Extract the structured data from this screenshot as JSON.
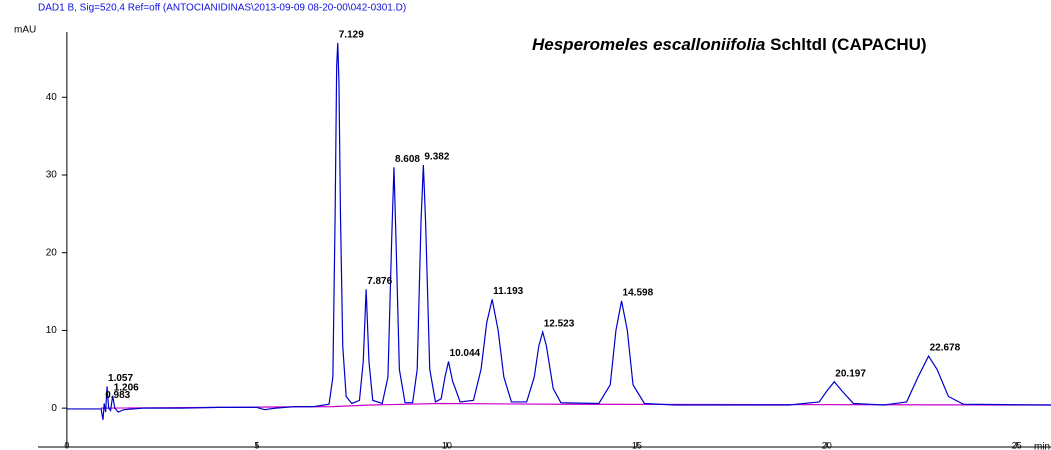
{
  "chart_data": {
    "type": "line",
    "header": "DAD1 B, Sig=520,4 Ref=off (ANTOCIANIDINAS\\2013-09-09 08-20-00\\042-0301.D)",
    "title": {
      "species": "Hesperomeles escalloniifolia",
      "rest": "Schltdl (CAPACHU)"
    },
    "y_label": "mAU",
    "x_label": "min",
    "xlim": [
      -0.76,
      25.9
    ],
    "ylim": [
      -5,
      48.4
    ],
    "xticks": [
      0,
      5,
      10,
      15,
      20,
      25
    ],
    "yticks": [
      0,
      10,
      20,
      30,
      40
    ],
    "series": [
      {
        "color": "#0000cc",
        "x": [
          0,
          0.9,
          0.95,
          0.983,
          1.02,
          1.057,
          1.1,
          1.15,
          1.206,
          1.26,
          1.35,
          1.5,
          2,
          3,
          4,
          5,
          5.2,
          5.5,
          6,
          6.5,
          6.9,
          7.0,
          7.06,
          7.1,
          7.129,
          7.16,
          7.2,
          7.26,
          7.35,
          7.5,
          7.7,
          7.8,
          7.876,
          7.95,
          8.05,
          8.3,
          8.45,
          8.55,
          8.608,
          8.66,
          8.75,
          8.9,
          9.1,
          9.22,
          9.32,
          9.382,
          9.44,
          9.55,
          9.7,
          9.85,
          9.95,
          10.044,
          10.15,
          10.35,
          10.7,
          10.9,
          11.05,
          11.193,
          11.35,
          11.5,
          11.7,
          12.1,
          12.3,
          12.42,
          12.523,
          12.62,
          12.8,
          13.0,
          14.0,
          14.3,
          14.45,
          14.598,
          14.75,
          14.9,
          15.2,
          16,
          19,
          19.8,
          20.0,
          20.197,
          20.4,
          20.7,
          21.5,
          22.1,
          22.4,
          22.678,
          22.9,
          23.2,
          23.6,
          25.9
        ],
        "values": [
          -0.1,
          -0.1,
          -1.5,
          0.6,
          -0.5,
          2.8,
          0,
          -0.3,
          1.6,
          0,
          -0.5,
          -0.2,
          0,
          0,
          0.1,
          0.1,
          -0.2,
          0,
          0.2,
          0.2,
          0.5,
          4,
          25,
          44,
          47,
          42,
          25,
          8,
          1.5,
          0.6,
          1,
          6,
          15.3,
          6,
          1,
          0.6,
          4,
          22,
          31,
          22,
          5,
          0.7,
          0.7,
          5,
          24,
          31.3,
          24,
          5,
          0.8,
          1.2,
          4,
          6,
          3.5,
          0.8,
          1,
          5,
          11,
          14,
          10,
          4,
          0.8,
          0.8,
          4,
          8,
          9.8,
          8,
          2.5,
          0.7,
          0.6,
          3,
          10,
          13.8,
          10,
          3,
          0.6,
          0.4,
          0.4,
          0.8,
          2.2,
          3.4,
          2.2,
          0.6,
          0.4,
          0.8,
          4,
          6.7,
          5,
          1.5,
          0.5,
          0.4
        ]
      },
      {
        "color": "#cc00cc",
        "x": [
          0.9,
          7,
          8,
          9.8,
          13,
          25.9
        ],
        "values": [
          0,
          0.2,
          0.4,
          0.6,
          0.5,
          0.4
        ]
      }
    ],
    "peaks": {
      "x": [
        0.983,
        1.057,
        1.206,
        7.129,
        7.876,
        8.608,
        9.382,
        10.044,
        11.193,
        12.523,
        14.598,
        20.197,
        22.678
      ],
      "heights": [
        0.6,
        2.8,
        1.6,
        47,
        15.3,
        31,
        31.3,
        6,
        14,
        9.8,
        13.8,
        3.4,
        6.7
      ]
    }
  }
}
